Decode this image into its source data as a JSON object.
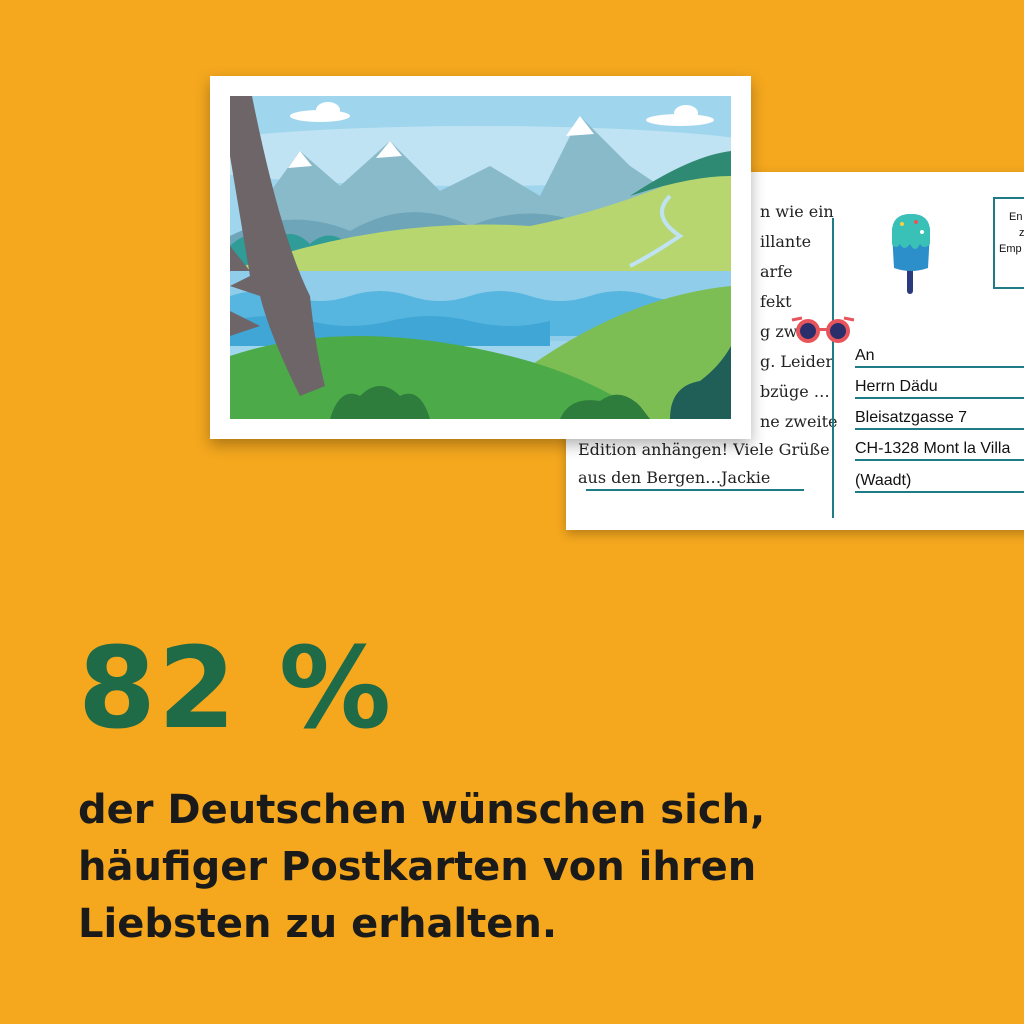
{
  "postcard": {
    "message_lines": [
      "n wie ein",
      "illante",
      "arfe",
      "fekt",
      "g zwisc",
      "g. Leider",
      "bzüge …",
      "ne zweite",
      "Edition anhängen! Viele Grüße",
      "aus den Bergen…Jackie"
    ],
    "address_label": "An",
    "address_lines": [
      "Herrn Dädu",
      "Bleisatzgasse 7",
      "CH-1328 Mont la Villa",
      "(Waadt)"
    ],
    "stamp_lines": [
      "En",
      "z",
      "Emp"
    ],
    "colors": {
      "line": "#1F7C86",
      "background": "#F5A81E"
    }
  },
  "stat": {
    "number": "82 %",
    "text_lines": [
      "der Deutschen wünschen sich,",
      "häufiger Postkarten von ihren",
      "Liebsten zu erhalten."
    ],
    "colors": {
      "number": "#1F6A47",
      "text": "#1A1A1A"
    }
  }
}
